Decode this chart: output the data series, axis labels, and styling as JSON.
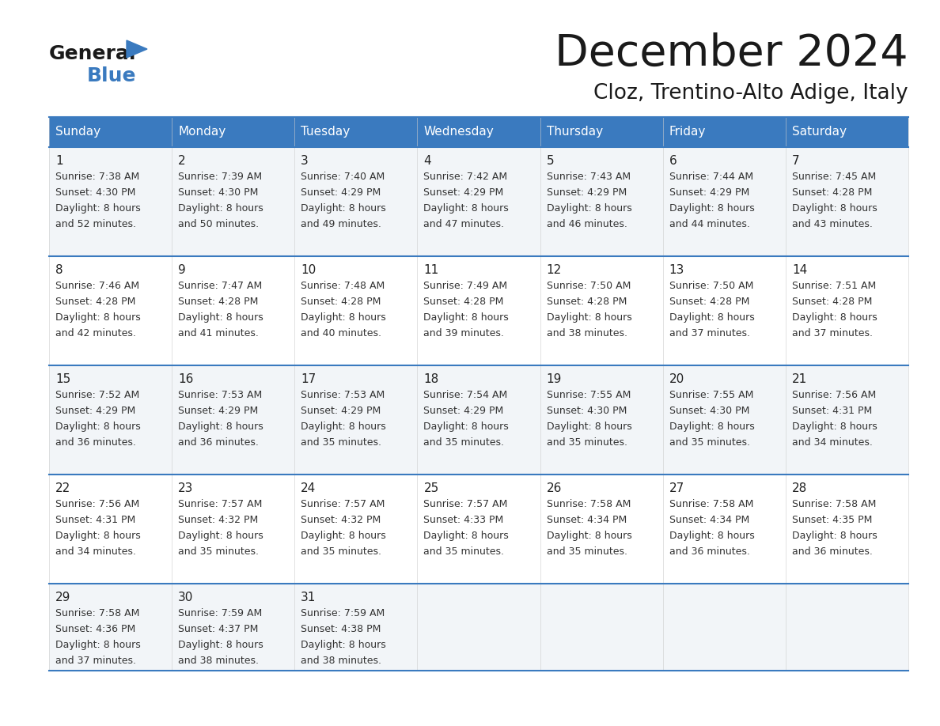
{
  "title": "December 2024",
  "subtitle": "Cloz, Trentino-Alto Adige, Italy",
  "days_of_week": [
    "Sunday",
    "Monday",
    "Tuesday",
    "Wednesday",
    "Thursday",
    "Friday",
    "Saturday"
  ],
  "header_bg": "#3a7abf",
  "header_text": "#ffffff",
  "row_bg_even": "#f2f5f8",
  "row_bg_odd": "#ffffff",
  "cell_border_color": "#3a7abf",
  "title_color": "#1a1a1a",
  "subtitle_color": "#1a1a1a",
  "day_number_color": "#222222",
  "cell_text_color": "#333333",
  "logo_black_color": "#1a1a1a",
  "logo_blue_color": "#3a7abf",
  "calendar_data": [
    [
      {
        "day": 1,
        "sunrise": "7:38 AM",
        "sunset": "4:30 PM",
        "daylight_hours": 8,
        "daylight_minutes": 52
      },
      {
        "day": 2,
        "sunrise": "7:39 AM",
        "sunset": "4:30 PM",
        "daylight_hours": 8,
        "daylight_minutes": 50
      },
      {
        "day": 3,
        "sunrise": "7:40 AM",
        "sunset": "4:29 PM",
        "daylight_hours": 8,
        "daylight_minutes": 49
      },
      {
        "day": 4,
        "sunrise": "7:42 AM",
        "sunset": "4:29 PM",
        "daylight_hours": 8,
        "daylight_minutes": 47
      },
      {
        "day": 5,
        "sunrise": "7:43 AM",
        "sunset": "4:29 PM",
        "daylight_hours": 8,
        "daylight_minutes": 46
      },
      {
        "day": 6,
        "sunrise": "7:44 AM",
        "sunset": "4:29 PM",
        "daylight_hours": 8,
        "daylight_minutes": 44
      },
      {
        "day": 7,
        "sunrise": "7:45 AM",
        "sunset": "4:28 PM",
        "daylight_hours": 8,
        "daylight_minutes": 43
      }
    ],
    [
      {
        "day": 8,
        "sunrise": "7:46 AM",
        "sunset": "4:28 PM",
        "daylight_hours": 8,
        "daylight_minutes": 42
      },
      {
        "day": 9,
        "sunrise": "7:47 AM",
        "sunset": "4:28 PM",
        "daylight_hours": 8,
        "daylight_minutes": 41
      },
      {
        "day": 10,
        "sunrise": "7:48 AM",
        "sunset": "4:28 PM",
        "daylight_hours": 8,
        "daylight_minutes": 40
      },
      {
        "day": 11,
        "sunrise": "7:49 AM",
        "sunset": "4:28 PM",
        "daylight_hours": 8,
        "daylight_minutes": 39
      },
      {
        "day": 12,
        "sunrise": "7:50 AM",
        "sunset": "4:28 PM",
        "daylight_hours": 8,
        "daylight_minutes": 38
      },
      {
        "day": 13,
        "sunrise": "7:50 AM",
        "sunset": "4:28 PM",
        "daylight_hours": 8,
        "daylight_minutes": 37
      },
      {
        "day": 14,
        "sunrise": "7:51 AM",
        "sunset": "4:28 PM",
        "daylight_hours": 8,
        "daylight_minutes": 37
      }
    ],
    [
      {
        "day": 15,
        "sunrise": "7:52 AM",
        "sunset": "4:29 PM",
        "daylight_hours": 8,
        "daylight_minutes": 36
      },
      {
        "day": 16,
        "sunrise": "7:53 AM",
        "sunset": "4:29 PM",
        "daylight_hours": 8,
        "daylight_minutes": 36
      },
      {
        "day": 17,
        "sunrise": "7:53 AM",
        "sunset": "4:29 PM",
        "daylight_hours": 8,
        "daylight_minutes": 35
      },
      {
        "day": 18,
        "sunrise": "7:54 AM",
        "sunset": "4:29 PM",
        "daylight_hours": 8,
        "daylight_minutes": 35
      },
      {
        "day": 19,
        "sunrise": "7:55 AM",
        "sunset": "4:30 PM",
        "daylight_hours": 8,
        "daylight_minutes": 35
      },
      {
        "day": 20,
        "sunrise": "7:55 AM",
        "sunset": "4:30 PM",
        "daylight_hours": 8,
        "daylight_minutes": 35
      },
      {
        "day": 21,
        "sunrise": "7:56 AM",
        "sunset": "4:31 PM",
        "daylight_hours": 8,
        "daylight_minutes": 34
      }
    ],
    [
      {
        "day": 22,
        "sunrise": "7:56 AM",
        "sunset": "4:31 PM",
        "daylight_hours": 8,
        "daylight_minutes": 34
      },
      {
        "day": 23,
        "sunrise": "7:57 AM",
        "sunset": "4:32 PM",
        "daylight_hours": 8,
        "daylight_minutes": 35
      },
      {
        "day": 24,
        "sunrise": "7:57 AM",
        "sunset": "4:32 PM",
        "daylight_hours": 8,
        "daylight_minutes": 35
      },
      {
        "day": 25,
        "sunrise": "7:57 AM",
        "sunset": "4:33 PM",
        "daylight_hours": 8,
        "daylight_minutes": 35
      },
      {
        "day": 26,
        "sunrise": "7:58 AM",
        "sunset": "4:34 PM",
        "daylight_hours": 8,
        "daylight_minutes": 35
      },
      {
        "day": 27,
        "sunrise": "7:58 AM",
        "sunset": "4:34 PM",
        "daylight_hours": 8,
        "daylight_minutes": 36
      },
      {
        "day": 28,
        "sunrise": "7:58 AM",
        "sunset": "4:35 PM",
        "daylight_hours": 8,
        "daylight_minutes": 36
      }
    ],
    [
      {
        "day": 29,
        "sunrise": "7:58 AM",
        "sunset": "4:36 PM",
        "daylight_hours": 8,
        "daylight_minutes": 37
      },
      {
        "day": 30,
        "sunrise": "7:59 AM",
        "sunset": "4:37 PM",
        "daylight_hours": 8,
        "daylight_minutes": 38
      },
      {
        "day": 31,
        "sunrise": "7:59 AM",
        "sunset": "4:38 PM",
        "daylight_hours": 8,
        "daylight_minutes": 38
      },
      null,
      null,
      null,
      null
    ]
  ]
}
